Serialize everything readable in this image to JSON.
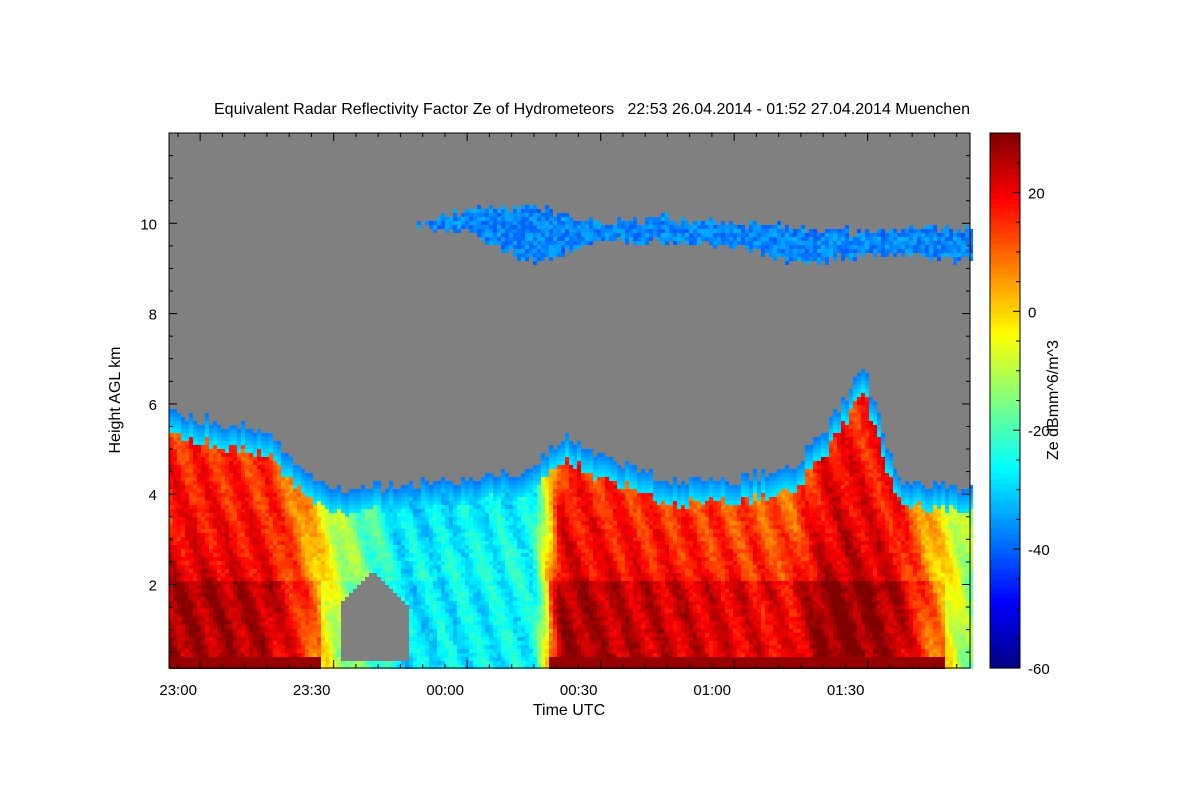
{
  "chart_data": {
    "type": "heatmap",
    "title": "Equivalent Radar Reflectivity Factor Ze of Hydrometeors   22:53 26.04.2014 - 01:52 27.04.2014 Muenchen",
    "xlabel": "Time UTC",
    "ylabel": "Height AGL km",
    "colorbar_label": "Ze dBmm^6/m^3",
    "xlim_minutes_from_2300": [
      -7,
      173
    ],
    "ylim_km": [
      0.15,
      12.0
    ],
    "x_ticks": [
      {
        "label": "23:00",
        "minutes_from_2300": 0
      },
      {
        "label": "23:30",
        "minutes_from_2300": 30
      },
      {
        "label": "00:00",
        "minutes_from_2300": 60
      },
      {
        "label": "00:30",
        "minutes_from_2300": 90
      },
      {
        "label": "01:00",
        "minutes_from_2300": 120
      },
      {
        "label": "01:30",
        "minutes_from_2300": 150
      }
    ],
    "y_ticks": [
      2,
      4,
      6,
      8,
      10
    ],
    "colorbar_range": [
      -60,
      30
    ],
    "colorbar_ticks": [
      20,
      0,
      -20,
      -40,
      -60
    ],
    "colormap": "jet",
    "no_data_color": "#808080",
    "lower_cloud_profile": {
      "minutes_from_2300": [
        -7,
        15,
        22,
        31,
        45,
        60,
        75,
        81,
        90,
        105,
        120,
        133,
        140,
        149,
        157,
        173
      ],
      "cloud_top_km": [
        5.8,
        5.4,
        4.6,
        4.1,
        4.2,
        4.3,
        4.5,
        5.3,
        4.9,
        4.3,
        4.3,
        4.6,
        5.3,
        6.8,
        4.3,
        4.1
      ],
      "low_level_ze_dbz": [
        22,
        20,
        12,
        -8,
        -27,
        -25,
        -24,
        22,
        20,
        18,
        16,
        14,
        24,
        24,
        20,
        -12
      ]
    },
    "echo_free_gap": {
      "minutes_from_2300": [
        32,
        47
      ],
      "height_km": [
        0.3,
        2.3
      ]
    },
    "cirrus_layer": {
      "minutes_from_2300": [
        49,
        60,
        75,
        90,
        105,
        120,
        135,
        150,
        173
      ],
      "base_km": [
        9.9,
        9.8,
        9.1,
        9.6,
        9.6,
        9.5,
        9.1,
        9.3,
        9.2
      ],
      "top_km": [
        10.0,
        10.3,
        10.4,
        10.0,
        10.1,
        10.0,
        9.9,
        9.8,
        9.9
      ],
      "ze_dbz": -37
    },
    "melting_layer_km": 2.05
  }
}
